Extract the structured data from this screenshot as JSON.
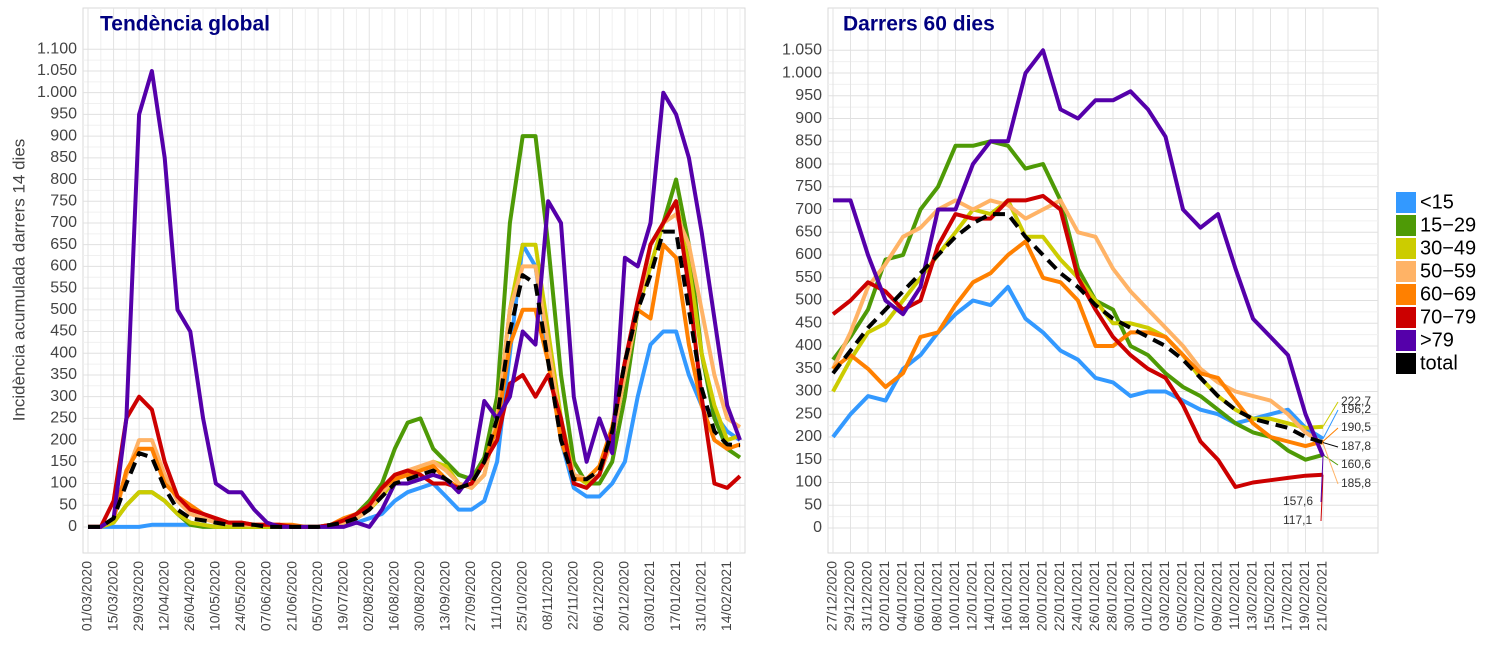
{
  "chart_data": [
    {
      "type": "line",
      "title": "Tendència global",
      "y_label": "Incidència acumulada darrers 14 dies",
      "categories": [
        "01/03/2020",
        null,
        "15/03/2020",
        null,
        "29/03/2020",
        null,
        "12/04/2020",
        null,
        "26/04/2020",
        null,
        "10/05/2020",
        null,
        "24/05/2020",
        null,
        "07/06/2020",
        null,
        "21/06/2020",
        null,
        "05/07/2020",
        null,
        "19/07/2020",
        null,
        "02/08/2020",
        null,
        "16/08/2020",
        null,
        "30/08/2020",
        null,
        "13/09/2020",
        null,
        "27/09/2020",
        null,
        "11/10/2020",
        null,
        "25/10/2020",
        null,
        "08/11/2020",
        null,
        "22/11/2020",
        null,
        "06/12/2020",
        null,
        "20/12/2020",
        null,
        "03/01/2021",
        null,
        "17/01/2021",
        null,
        "31/01/2021",
        null,
        "14/02/2021",
        null
      ],
      "ylim": [
        -60,
        1195
      ],
      "yticks": [
        0,
        50,
        100,
        150,
        200,
        250,
        300,
        350,
        400,
        450,
        500,
        550,
        600,
        650,
        700,
        750,
        800,
        850,
        900,
        950,
        {
          "value": 1000,
          "label": "1.000"
        },
        {
          "value": 1050,
          "label": "1.050"
        },
        {
          "value": 1100,
          "label": "1.100"
        }
      ],
      "grid": true,
      "series": [
        {
          "name": "<15",
          "color": "#3399ff",
          "values": [
            0,
            0,
            0,
            0,
            0,
            5,
            5,
            5,
            5,
            5,
            0,
            0,
            0,
            0,
            0,
            0,
            0,
            0,
            0,
            0,
            5,
            10,
            20,
            30,
            60,
            80,
            90,
            100,
            70,
            40,
            40,
            60,
            150,
            400,
            650,
            600,
            400,
            200,
            90,
            70,
            70,
            100,
            150,
            300,
            420,
            450,
            450,
            350,
            280,
            260,
            220,
            200
          ]
        },
        {
          "name": "15−29",
          "color": "#4e9a06",
          "values": [
            0,
            0,
            10,
            50,
            80,
            80,
            60,
            30,
            5,
            0,
            0,
            0,
            0,
            0,
            0,
            0,
            0,
            0,
            0,
            5,
            10,
            30,
            60,
            100,
            180,
            240,
            250,
            180,
            150,
            120,
            110,
            160,
            300,
            700,
            900,
            900,
            650,
            350,
            150,
            100,
            100,
            150,
            300,
            500,
            650,
            700,
            800,
            650,
            400,
            250,
            180,
            160
          ]
        },
        {
          "name": "30−49",
          "color": "#cccc00",
          "values": [
            0,
            0,
            10,
            50,
            80,
            80,
            60,
            30,
            10,
            5,
            0,
            0,
            0,
            0,
            0,
            0,
            0,
            0,
            0,
            5,
            10,
            20,
            40,
            70,
            110,
            120,
            130,
            150,
            140,
            100,
            90,
            120,
            250,
            500,
            650,
            650,
            450,
            250,
            120,
            100,
            120,
            200,
            350,
            500,
            600,
            700,
            750,
            600,
            400,
            280,
            200,
            210
          ]
        },
        {
          "name": "50−59",
          "color": "#ffb366",
          "values": [
            0,
            0,
            20,
            120,
            200,
            200,
            120,
            60,
            30,
            20,
            10,
            10,
            5,
            5,
            5,
            5,
            0,
            0,
            0,
            5,
            10,
            20,
            40,
            80,
            110,
            130,
            140,
            150,
            130,
            100,
            90,
            120,
            250,
            500,
            600,
            600,
            420,
            230,
            120,
            110,
            120,
            200,
            350,
            500,
            650,
            700,
            720,
            650,
            500,
            350,
            250,
            230
          ]
        },
        {
          "name": "60−69",
          "color": "#ff8000",
          "values": [
            0,
            0,
            20,
            130,
            180,
            180,
            100,
            70,
            50,
            30,
            20,
            10,
            10,
            5,
            5,
            5,
            5,
            0,
            0,
            5,
            20,
            30,
            50,
            90,
            110,
            120,
            130,
            140,
            110,
            90,
            100,
            150,
            230,
            420,
            500,
            500,
            380,
            200,
            110,
            110,
            140,
            230,
            380,
            500,
            480,
            650,
            620,
            420,
            280,
            200,
            180,
            190
          ]
        },
        {
          "name": "70−79",
          "color": "#cc0000",
          "values": [
            0,
            0,
            60,
            250,
            300,
            270,
            150,
            70,
            40,
            30,
            20,
            10,
            10,
            5,
            5,
            5,
            0,
            0,
            0,
            5,
            15,
            30,
            50,
            90,
            120,
            130,
            120,
            100,
            100,
            90,
            100,
            150,
            200,
            330,
            350,
            300,
            350,
            250,
            100,
            90,
            120,
            220,
            380,
            520,
            650,
            700,
            750,
            550,
            300,
            100,
            90,
            117
          ]
        },
        {
          "name": ">79",
          "color": "#5500aa",
          "values": [
            0,
            0,
            20,
            250,
            950,
            1050,
            850,
            500,
            450,
            250,
            100,
            80,
            80,
            40,
            10,
            0,
            0,
            0,
            0,
            0,
            0,
            10,
            0,
            40,
            100,
            100,
            110,
            120,
            110,
            80,
            120,
            290,
            250,
            300,
            450,
            420,
            750,
            700,
            300,
            150,
            250,
            170,
            620,
            600,
            700,
            1000,
            950,
            850,
            680,
            480,
            280,
            200
          ]
        },
        {
          "name": "total",
          "color": "#000000",
          "dashed": true,
          "values": [
            0,
            0,
            20,
            100,
            170,
            160,
            90,
            40,
            20,
            15,
            10,
            5,
            5,
            5,
            0,
            0,
            0,
            0,
            0,
            5,
            10,
            20,
            40,
            70,
            100,
            110,
            120,
            130,
            110,
            90,
            100,
            150,
            250,
            450,
            580,
            560,
            380,
            200,
            110,
            110,
            130,
            220,
            380,
            500,
            580,
            680,
            680,
            500,
            320,
            220,
            190,
            188
          ]
        }
      ]
    },
    {
      "type": "line",
      "title": "Darrers 60 dies",
      "categories": [
        "27/12/2020",
        "29/12/2020",
        "31/12/2020",
        "02/01/2021",
        "04/01/2021",
        "06/01/2021",
        "08/01/2021",
        "10/01/2021",
        "12/01/2021",
        "14/01/2021",
        "16/01/2021",
        "18/01/2021",
        "20/01/2021",
        "22/01/2021",
        "24/01/2021",
        "26/01/2021",
        "28/01/2021",
        "30/01/2021",
        "01/02/2021",
        "03/02/2021",
        "05/02/2021",
        "07/02/2021",
        "09/02/2021",
        "11/02/2021",
        "13/02/2021",
        "15/02/2021",
        "17/02/2021",
        "19/02/2021",
        "21/02/2021"
      ],
      "ylim": [
        -55,
        1143
      ],
      "yticks": [
        0,
        50,
        100,
        150,
        200,
        250,
        300,
        350,
        400,
        450,
        500,
        550,
        600,
        650,
        700,
        750,
        800,
        850,
        900,
        950,
        {
          "value": 1000,
          "label": "1.000"
        },
        {
          "value": 1050,
          "label": "1.050"
        }
      ],
      "grid": true,
      "series": [
        {
          "name": "<15",
          "color": "#3399ff",
          "end_label": "196,2",
          "values": [
            200,
            250,
            290,
            280,
            350,
            380,
            430,
            470,
            500,
            490,
            530,
            460,
            430,
            390,
            370,
            330,
            320,
            290,
            300,
            300,
            280,
            260,
            250,
            230,
            240,
            250,
            260,
            220,
            196.2
          ]
        },
        {
          "name": "15−29",
          "color": "#4e9a06",
          "end_label": "160,6",
          "values": [
            370,
            420,
            480,
            590,
            600,
            700,
            750,
            840,
            840,
            850,
            840,
            790,
            800,
            720,
            570,
            500,
            480,
            400,
            380,
            340,
            310,
            290,
            260,
            230,
            210,
            200,
            170,
            150,
            160.6
          ]
        },
        {
          "name": "30−49",
          "color": "#cccc00",
          "end_label": "222,7",
          "values": [
            300,
            370,
            430,
            450,
            500,
            550,
            600,
            650,
            700,
            690,
            720,
            640,
            640,
            590,
            550,
            500,
            450,
            450,
            440,
            420,
            380,
            330,
            290,
            260,
            240,
            240,
            230,
            220,
            222.7
          ]
        },
        {
          "name": "50−59",
          "color": "#ffb366",
          "end_label": "185,8",
          "values": [
            350,
            430,
            530,
            580,
            640,
            660,
            700,
            720,
            700,
            720,
            710,
            680,
            700,
            720,
            650,
            640,
            570,
            520,
            480,
            440,
            400,
            350,
            320,
            300,
            290,
            280,
            250,
            210,
            185.8
          ]
        },
        {
          "name": "60−69",
          "color": "#ff8000",
          "end_label": "190,5",
          "values": [
            350,
            380,
            350,
            310,
            340,
            420,
            430,
            490,
            540,
            560,
            600,
            630,
            550,
            540,
            500,
            400,
            400,
            430,
            430,
            420,
            380,
            340,
            330,
            280,
            230,
            200,
            190,
            180,
            190.5
          ]
        },
        {
          "name": "70−79",
          "color": "#cc0000",
          "end_label": "117,1",
          "values": [
            470,
            500,
            540,
            520,
            480,
            500,
            620,
            690,
            680,
            680,
            720,
            720,
            730,
            700,
            550,
            480,
            420,
            380,
            350,
            330,
            270,
            190,
            150,
            90,
            100,
            105,
            110,
            115,
            117.1
          ]
        },
        {
          "name": ">79",
          "color": "#5500aa",
          "end_label": "157,6",
          "values": [
            720,
            720,
            600,
            500,
            470,
            530,
            700,
            700,
            800,
            850,
            850,
            1000,
            1050,
            920,
            900,
            940,
            940,
            960,
            920,
            860,
            700,
            660,
            690,
            570,
            460,
            420,
            380,
            250,
            157.6
          ]
        },
        {
          "name": "total",
          "color": "#000000",
          "dashed": true,
          "end_label": "187,8",
          "values": [
            340,
            390,
            440,
            480,
            520,
            560,
            600,
            640,
            670,
            690,
            690,
            640,
            600,
            560,
            530,
            490,
            460,
            440,
            420,
            400,
            370,
            330,
            290,
            260,
            240,
            230,
            220,
            200,
            187.8
          ]
        }
      ]
    }
  ]
}
